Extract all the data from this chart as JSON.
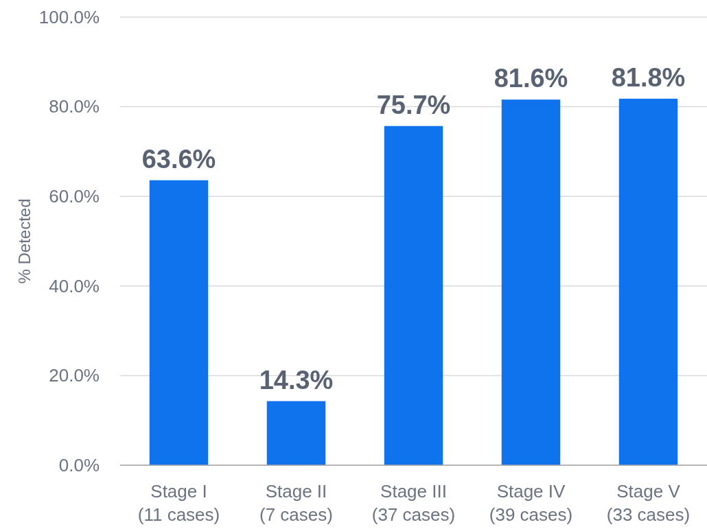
{
  "chart_data": {
    "type": "bar",
    "ylabel": "% Detected",
    "categories": [
      "Stage I\n(11 cases)",
      "Stage II\n(7 cases)",
      "Stage III\n(37 cases)",
      "Stage IV\n(39 cases)",
      "Stage V\n(33 cases)"
    ],
    "values": [
      63.6,
      14.3,
      75.7,
      81.6,
      81.8
    ],
    "value_labels": [
      "63.6%",
      "14.3%",
      "75.7%",
      "81.6%",
      "81.8%"
    ],
    "color": "#0f73ee",
    "ylim": [
      0,
      100
    ],
    "yticks": [
      {
        "value": 0,
        "label": "0.0%"
      },
      {
        "value": 20,
        "label": "20.0%"
      },
      {
        "value": 40,
        "label": "40.0%"
      },
      {
        "value": 60,
        "label": "60.0%"
      },
      {
        "value": 80,
        "label": "80.0%"
      },
      {
        "value": 100,
        "label": "100.0%"
      }
    ],
    "grid": "y"
  }
}
